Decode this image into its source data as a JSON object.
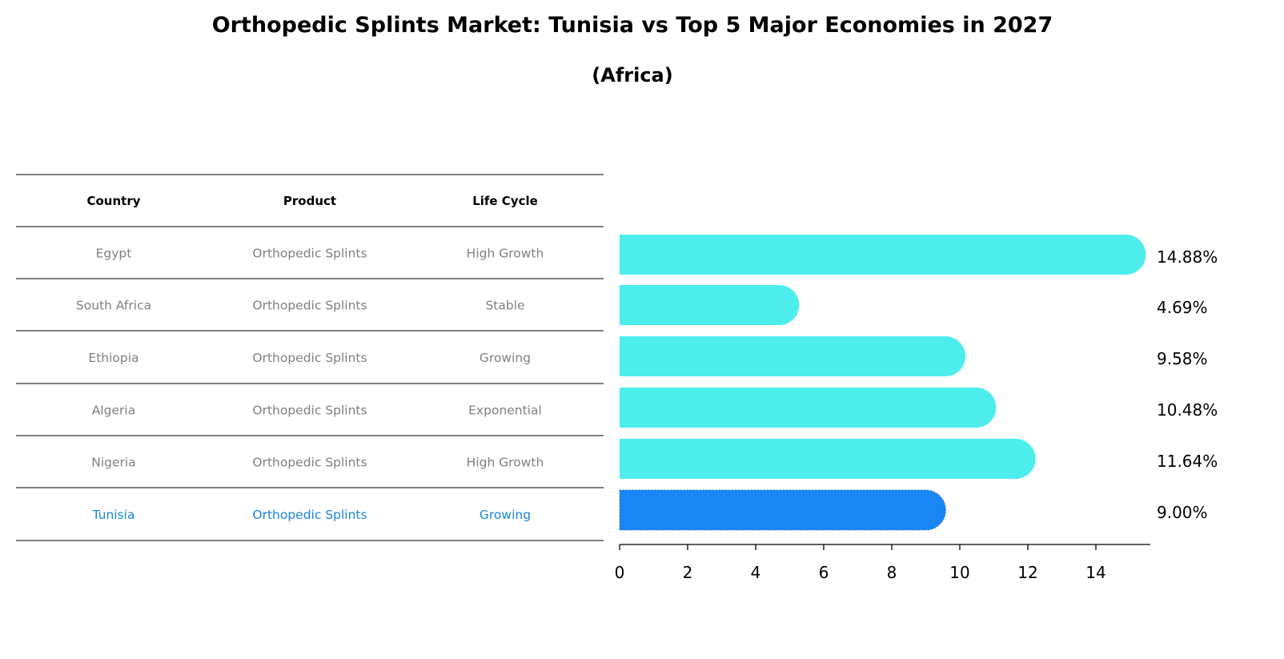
{
  "chart_data": {
    "type": "bar",
    "orientation": "horizontal",
    "title": "Orthopedic Splints Market: Tunisia vs Top 5 Major Economies in 2027",
    "subtitle": "(Africa)",
    "xlabel": "",
    "ylabel": "",
    "xlim": [
      0,
      15.6
    ],
    "xticks": [
      0,
      2,
      4,
      6,
      8,
      10,
      12,
      14
    ],
    "categories": [
      "Egypt",
      "South Africa",
      "Ethiopia",
      "Algeria",
      "Nigeria",
      "Tunisia"
    ],
    "values": [
      14.88,
      4.69,
      9.58,
      10.48,
      11.64,
      9.0
    ],
    "value_labels": [
      "14.88%",
      "4.69%",
      "9.58%",
      "10.48%",
      "11.64%",
      "9.00%"
    ],
    "highlight": "Tunisia",
    "colors": {
      "default": "#4dedec",
      "highlight": "#1a85f5"
    },
    "table": {
      "headers": [
        "Country",
        "Product",
        "Life Cycle"
      ],
      "rows": [
        [
          "Egypt",
          "Orthopedic Splints",
          "High Growth"
        ],
        [
          "South Africa",
          "Orthopedic Splints",
          "Stable"
        ],
        [
          "Ethiopia",
          "Orthopedic Splints",
          "Growing"
        ],
        [
          "Algeria",
          "Orthopedic Splints",
          "Exponential"
        ],
        [
          "Nigeria",
          "Orthopedic Splints",
          "High Growth"
        ],
        [
          "Tunisia",
          "Orthopedic Splints",
          "Growing"
        ]
      ],
      "text_color": "#808080",
      "highlight_text_color": "#1a85d6"
    }
  }
}
